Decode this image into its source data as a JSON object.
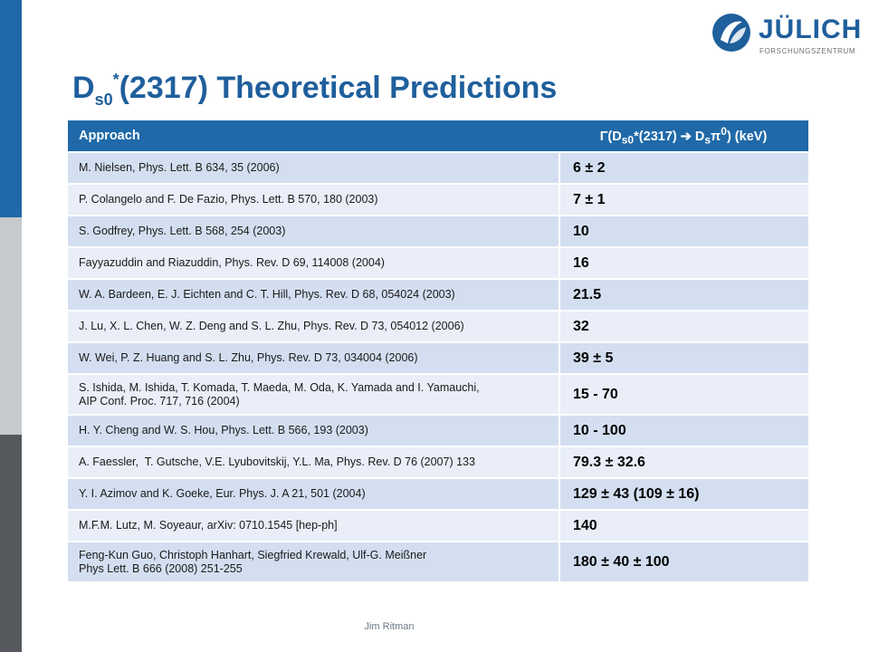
{
  "slide": {
    "title_main": "D",
    "title_sub": "s0",
    "title_sup": "*",
    "title_rest": "(2317) Theoretical Predictions",
    "footer": "Jim Ritman"
  },
  "logo": {
    "name": "JÜLICH",
    "sub": "FORSCHUNGSZENTRUM",
    "color": "#1f5f9c"
  },
  "colors": {
    "header_bg": "#1f69a8",
    "row_even": "#d3dff0",
    "row_odd": "#e9eef8",
    "title": "#1f5f9c"
  },
  "table": {
    "headers": {
      "approach": "Approach",
      "width_pre": "Γ(D",
      "width_sub1": "s0",
      "width_mid": "*(2317) ➔ D",
      "width_sub2": "s",
      "width_pi": "π",
      "width_sup": "0",
      "width_post": ") (keV)"
    },
    "rows": [
      {
        "approach": [
          "M. Nielsen, Phys. Lett. B 634, 35 (2006)"
        ],
        "width": "6 ± 2"
      },
      {
        "approach": [
          "P. Colangelo and F. De Fazio, Phys. Lett. B 570, 180 (2003)"
        ],
        "width": "7 ± 1"
      },
      {
        "approach": [
          "S. Godfrey, Phys. Lett. B 568, 254 (2003)"
        ],
        "width": "10"
      },
      {
        "approach": [
          "Fayyazuddin and Riazuddin, Phys. Rev. D 69, 114008 (2004)"
        ],
        "width": "16"
      },
      {
        "approach": [
          "W. A. Bardeen, E. J. Eichten and C. T. Hill, Phys. Rev. D 68, 054024 (2003)"
        ],
        "width": "21.5"
      },
      {
        "approach": [
          "J. Lu, X. L. Chen, W. Z. Deng and S. L. Zhu, Phys. Rev. D 73, 054012 (2006)"
        ],
        "width": "32"
      },
      {
        "approach": [
          "W. Wei, P. Z. Huang and S. L. Zhu, Phys. Rev. D 73, 034004 (2006)"
        ],
        "width": "39 ± 5"
      },
      {
        "approach": [
          "S. Ishida, M. Ishida, T. Komada, T. Maeda, M. Oda, K. Yamada and I. Yamauchi,",
          "AIP Conf. Proc. 717, 716 (2004)"
        ],
        "width": "15 - 70"
      },
      {
        "approach": [
          "H. Y. Cheng and W. S. Hou, Phys. Lett. B 566, 193 (2003)"
        ],
        "width": "10 - 100"
      },
      {
        "approach": [
          "A. Faessler,  T. Gutsche, V.E. Lyubovitskij, Y.L. Ma, Phys. Rev. D 76 (2007) 133"
        ],
        "width": "79.3 ± 32.6"
      },
      {
        "approach": [
          "Y. I. Azimov and K. Goeke, Eur. Phys. J. A 21, 501 (2004)"
        ],
        "width": "129 ± 43 (109 ± 16)"
      },
      {
        "approach": [
          "M.F.M. Lutz, M. Soyeaur, arXiv: 0710.1545 [hep-ph]"
        ],
        "width": "140"
      },
      {
        "approach": [
          "Feng-Kun Guo, Christoph Hanhart, Siegfried Krewald, Ulf-G. Meißner",
          "Phys Lett. B 666 (2008) 251-255"
        ],
        "width": "180 ± 40 ± 100"
      }
    ]
  }
}
